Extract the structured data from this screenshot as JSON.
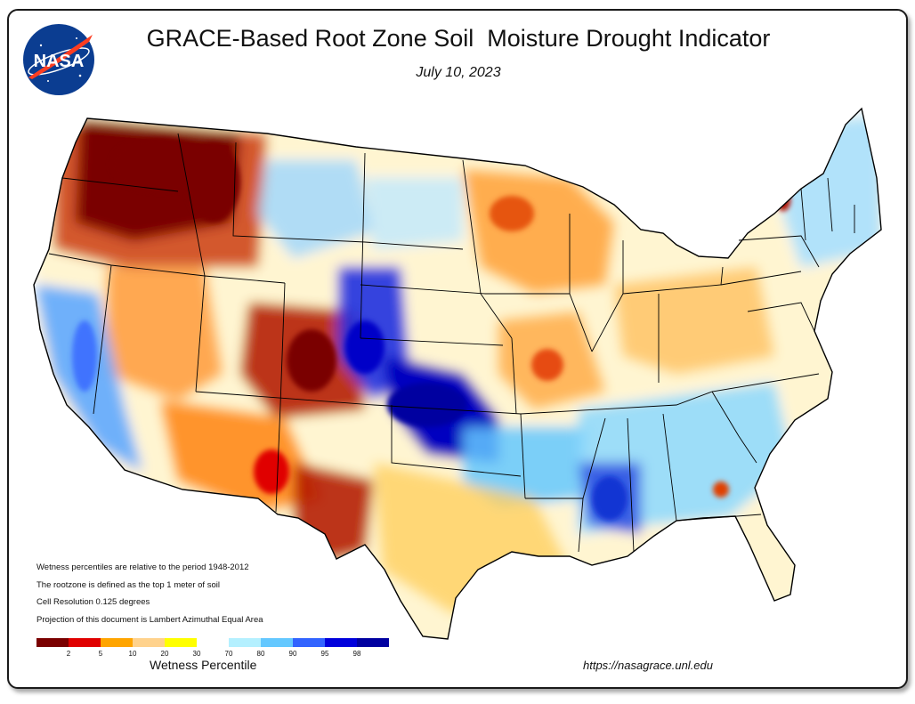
{
  "header": {
    "title": "GRACE-Based Root Zone Soil  Moisture Drought Indicator",
    "date": "July 10, 2023",
    "logo_text": "NASA"
  },
  "notes": [
    "Wetness percentiles are relative to the period 1948-2012",
    "The rootzone is defined as the top 1 meter of soil",
    "Cell Resolution 0.125 degrees",
    "Projection of this document is Lambert Azimuthal Equal Area"
  ],
  "legend": {
    "title": "Wetness Percentile",
    "colors": [
      "#7a0000",
      "#e00000",
      "#ffa500",
      "#ffd28c",
      "#ffff00",
      "#ffffff",
      "#b4f0ff",
      "#64c8ff",
      "#3264ff",
      "#0000dc",
      "#0000a0"
    ],
    "ticks": [
      "2",
      "5",
      "10",
      "20",
      "30",
      "70",
      "80",
      "90",
      "95",
      "98"
    ]
  },
  "source_url": "https://nasagrace.unl.edu",
  "colors": {
    "wettest": "#0000a0",
    "driest": "#7a0000",
    "border": "#1a1a1a"
  }
}
